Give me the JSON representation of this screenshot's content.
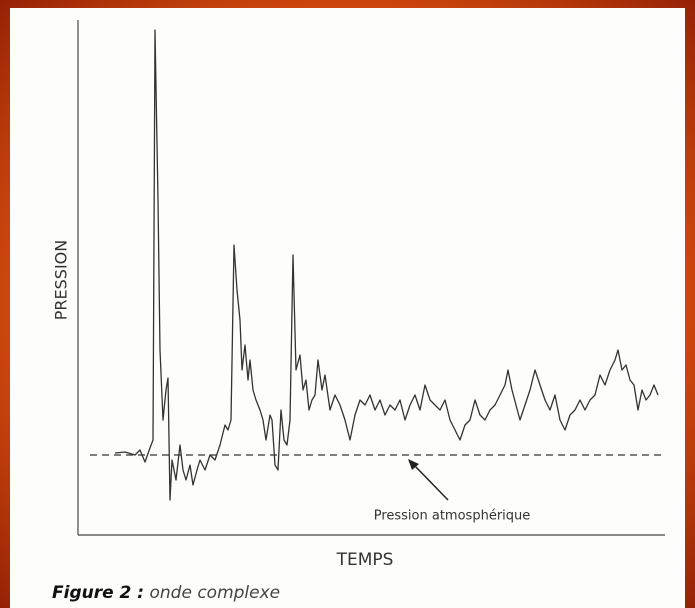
{
  "chart_data": {
    "type": "line",
    "x_label": "TEMPS",
    "y_label": "PRESSION",
    "annotation": "Pression atmosphérique",
    "caption_label": "Figure 2 :",
    "caption_text": "onde complexe",
    "reference_value": 0,
    "xlim": [
      0,
      587
    ],
    "ylim": [
      -80,
      435
    ],
    "color": "#333333",
    "x": [
      37,
      47,
      57,
      62,
      67,
      72,
      75,
      77,
      80,
      82,
      85,
      88,
      90,
      92,
      94,
      98,
      102,
      105,
      108,
      112,
      115,
      119,
      122,
      127,
      132,
      137,
      142,
      147,
      150,
      153,
      156,
      159,
      162,
      164,
      167,
      170,
      172,
      175,
      178,
      182,
      185,
      188,
      192,
      194,
      197,
      200,
      203,
      206,
      209,
      212,
      215,
      218,
      222,
      225,
      228,
      231,
      234,
      237,
      240,
      244,
      247,
      252,
      257,
      262,
      267,
      272,
      277,
      282,
      287,
      292,
      297,
      302,
      307,
      312,
      317,
      322,
      327,
      332,
      337,
      342,
      347,
      352,
      357,
      362,
      367,
      372,
      377,
      382,
      387,
      392,
      397,
      402,
      407,
      412,
      417,
      422,
      427,
      430,
      434,
      438,
      442,
      447,
      452,
      457,
      462,
      467,
      472,
      477,
      482,
      487,
      492,
      497,
      502,
      507,
      512,
      517,
      522,
      527,
      532,
      537,
      540,
      544,
      548,
      552,
      556,
      560,
      564,
      568,
      572,
      576,
      580
    ],
    "values": [
      2,
      3,
      0,
      5,
      -7,
      7,
      15,
      425,
      255,
      105,
      35,
      65,
      77,
      -45,
      -5,
      -25,
      10,
      -15,
      -25,
      -10,
      -30,
      -15,
      -5,
      -15,
      0,
      -5,
      10,
      30,
      25,
      35,
      210,
      165,
      135,
      85,
      110,
      75,
      95,
      65,
      55,
      45,
      35,
      15,
      40,
      35,
      -10,
      -15,
      45,
      15,
      10,
      35,
      200,
      85,
      100,
      65,
      75,
      45,
      55,
      60,
      95,
      65,
      80,
      45,
      60,
      50,
      35,
      15,
      40,
      55,
      50,
      60,
      45,
      55,
      40,
      50,
      45,
      55,
      35,
      50,
      60,
      45,
      70,
      55,
      50,
      45,
      55,
      35,
      25,
      15,
      30,
      35,
      55,
      40,
      35,
      45,
      50,
      60,
      70,
      85,
      65,
      50,
      35,
      50,
      65,
      85,
      70,
      55,
      45,
      60,
      35,
      25,
      40,
      45,
      55,
      45,
      55,
      60,
      80,
      70,
      85,
      95,
      105,
      85,
      90,
      75,
      70,
      45,
      65,
      55,
      60,
      70,
      60
    ]
  }
}
